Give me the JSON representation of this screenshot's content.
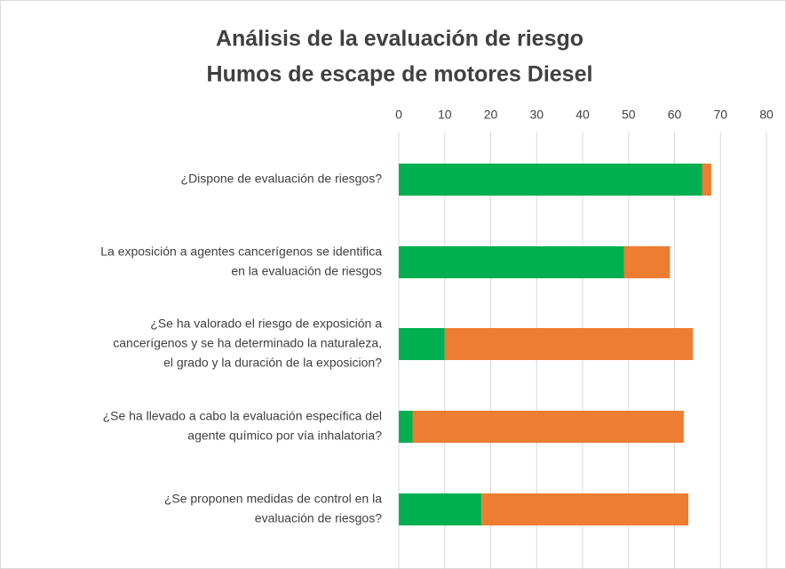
{
  "chart_data": {
    "type": "stacked-barh",
    "title": [
      "Análisis de la evaluación de riesgo",
      "Humos de escape de motores Diesel"
    ],
    "categories": [
      [
        "¿Dispone de evaluación de riesgos?"
      ],
      [
        "La exposición a agentes cancerígenos se identifica",
        "en la evaluación de riesgos"
      ],
      [
        "¿Se ha valorado el riesgo de exposición a",
        "cancerígenos y se ha determinado la naturaleza,",
        "el grado y la duración de la exposicion?"
      ],
      [
        "¿Se ha llevado a cabo la evaluación específica del",
        "agente químico por vía inhalatoria?"
      ],
      [
        "¿Se proponen medidas de control en la",
        "evaluación de riesgos?"
      ]
    ],
    "series": [
      {
        "color": "#00b050",
        "values": [
          66,
          49,
          10,
          3,
          18
        ]
      },
      {
        "color": "#ed7d31",
        "values": [
          2,
          10,
          54,
          59,
          45
        ]
      }
    ],
    "xlim": [
      0,
      80
    ],
    "xticks": [
      0,
      10,
      20,
      30,
      40,
      50,
      60,
      70,
      80
    ],
    "grid": true
  }
}
